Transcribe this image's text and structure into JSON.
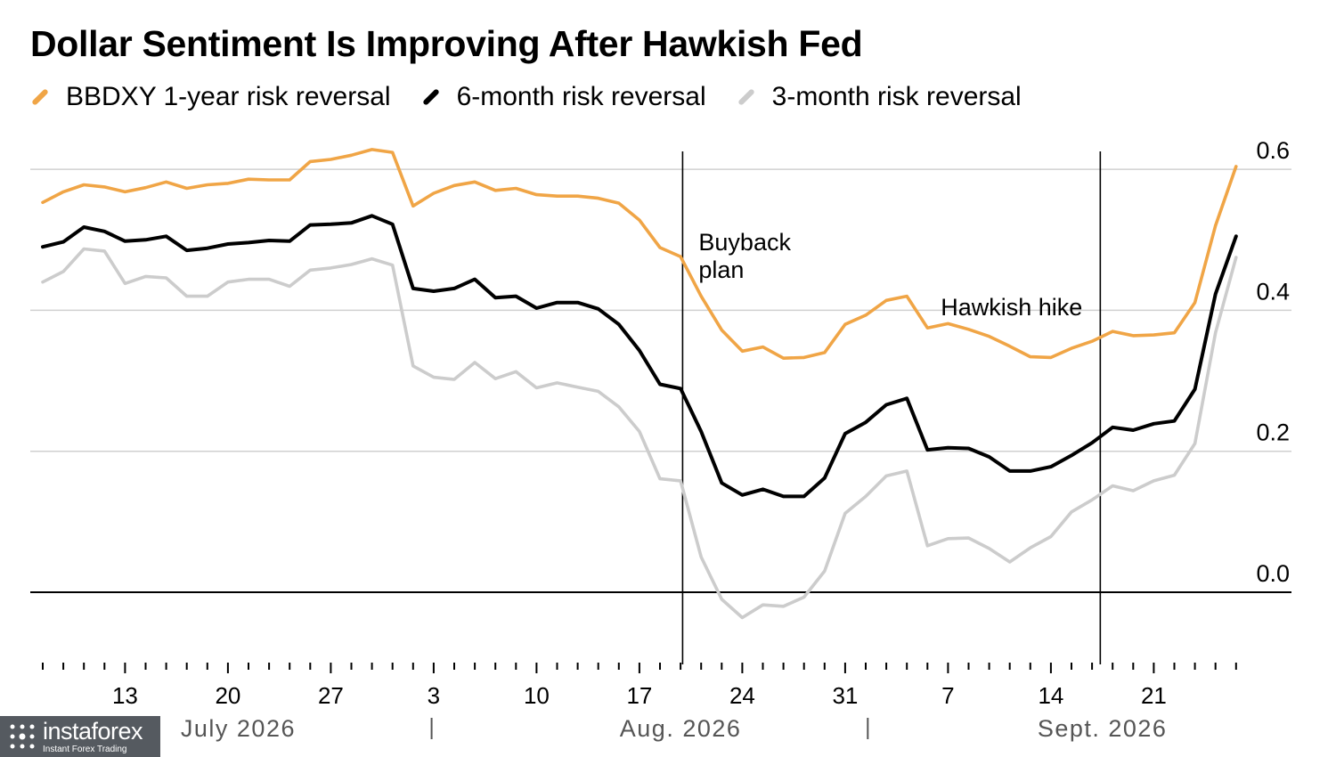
{
  "chart_data": {
    "type": "line",
    "title": "Dollar Sentiment Is Improving After Hawkish Fed",
    "ylim": [
      -0.1,
      0.62
    ],
    "y_ticks": [
      {
        "value": 0.6,
        "label": "0.6"
      },
      {
        "value": 0.4,
        "label": "0.4"
      },
      {
        "value": 0.2,
        "label": "0.2"
      },
      {
        "value": 0.0,
        "label": "0.0"
      }
    ],
    "x_tick_labels": [
      {
        "index": 4,
        "label": "13"
      },
      {
        "index": 9,
        "label": "20"
      },
      {
        "index": 14,
        "label": "27"
      },
      {
        "index": 19,
        "label": "3"
      },
      {
        "index": 24,
        "label": "10"
      },
      {
        "index": 29,
        "label": "17"
      },
      {
        "index": 34,
        "label": "24"
      },
      {
        "index": 39,
        "label": "31"
      },
      {
        "index": 44,
        "label": "7"
      },
      {
        "index": 49,
        "label": "14"
      },
      {
        "index": 54,
        "label": "21"
      }
    ],
    "month_labels": [
      {
        "label": "July 2026",
        "center_index": 9.5
      },
      {
        "label": "Aug. 2026",
        "center_index": 31
      },
      {
        "label": "Sept. 2026",
        "center_index": 51.5
      }
    ],
    "month_separators": [
      18.9,
      40.1
    ],
    "grid": true,
    "legend_position": "top",
    "annotations": [
      {
        "text_lines": [
          "Buyback",
          "plan"
        ],
        "index": 31.1
      },
      {
        "text_lines": [
          "Hawkish hike"
        ],
        "index": 51.4
      }
    ],
    "series": [
      {
        "name": "BBDXY 1-year risk reversal",
        "color": "#f0a546",
        "values": [
          0.553,
          0.568,
          0.578,
          0.575,
          0.568,
          0.574,
          0.582,
          0.573,
          0.578,
          0.58,
          0.586,
          0.585,
          0.585,
          0.611,
          0.614,
          0.62,
          0.628,
          0.624,
          0.548,
          0.566,
          0.577,
          0.582,
          0.57,
          0.573,
          0.564,
          0.562,
          0.562,
          0.559,
          0.552,
          0.528,
          0.489,
          0.476,
          0.42,
          0.372,
          0.342,
          0.348,
          0.332,
          0.333,
          0.34,
          0.38,
          0.393,
          0.414,
          0.42,
          0.375,
          0.381,
          0.373,
          0.363,
          0.349,
          0.334,
          0.333,
          0.346,
          0.356,
          0.37,
          0.364,
          0.365,
          0.368,
          0.411,
          0.52,
          0.604
        ]
      },
      {
        "name": "6-month risk reversal",
        "color": "#000000",
        "values": [
          0.49,
          0.497,
          0.518,
          0.512,
          0.498,
          0.5,
          0.505,
          0.485,
          0.488,
          0.494,
          0.496,
          0.499,
          0.498,
          0.521,
          0.522,
          0.524,
          0.534,
          0.522,
          0.431,
          0.427,
          0.431,
          0.444,
          0.418,
          0.42,
          0.403,
          0.411,
          0.411,
          0.402,
          0.38,
          0.343,
          0.295,
          0.289,
          0.228,
          0.155,
          0.138,
          0.146,
          0.136,
          0.136,
          0.162,
          0.225,
          0.241,
          0.266,
          0.275,
          0.202,
          0.205,
          0.204,
          0.192,
          0.172,
          0.172,
          0.178,
          0.194,
          0.212,
          0.234,
          0.23,
          0.239,
          0.243,
          0.288,
          0.423,
          0.505
        ]
      },
      {
        "name": "3-month risk reversal",
        "color": "#cccccc",
        "values": [
          0.44,
          0.455,
          0.487,
          0.484,
          0.438,
          0.448,
          0.446,
          0.42,
          0.42,
          0.44,
          0.444,
          0.444,
          0.434,
          0.457,
          0.46,
          0.465,
          0.473,
          0.464,
          0.321,
          0.305,
          0.302,
          0.326,
          0.303,
          0.313,
          0.29,
          0.297,
          0.291,
          0.285,
          0.263,
          0.228,
          0.161,
          0.158,
          0.05,
          -0.01,
          -0.036,
          -0.018,
          -0.02,
          -0.007,
          0.03,
          0.112,
          0.136,
          0.165,
          0.172,
          0.066,
          0.076,
          0.077,
          0.062,
          0.043,
          0.063,
          0.079,
          0.114,
          0.131,
          0.151,
          0.144,
          0.158,
          0.166,
          0.211,
          0.368,
          0.475
        ]
      }
    ]
  },
  "watermark": {
    "name": "instaforex",
    "tagline": "Instant Forex Trading"
  }
}
